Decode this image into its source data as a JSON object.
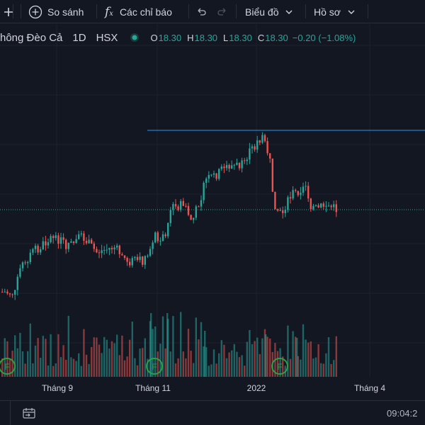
{
  "toolbar": {
    "compare_label": "So sánh",
    "indicators_label": "Các chỉ báo",
    "chart_type_label": "Biểu đồ",
    "profile_label": "Hồ sơ"
  },
  "legend": {
    "symbol": "hông Đèo Cả",
    "interval": "1D",
    "exchange": "HSX",
    "o_key": "O",
    "o_val": "18.30",
    "h_key": "H",
    "h_val": "18.30",
    "l_key": "L",
    "l_val": "18.30",
    "c_key": "C",
    "c_val": "18.30",
    "change": "−0.20 (−1.08%)",
    "colors": {
      "up": "#26a69a",
      "down": "#ef5350"
    }
  },
  "xaxis": {
    "labels": [
      "Tháng 9",
      "Tháng 11",
      "2022",
      "Tháng 4"
    ]
  },
  "event_marker": "F",
  "status": {
    "time": "09:04:2"
  },
  "chart_data": {
    "type": "candlestick",
    "price_line_high": 27.0,
    "last_price_line": 18.3,
    "events": [
      "F",
      "F",
      "F"
    ]
  }
}
